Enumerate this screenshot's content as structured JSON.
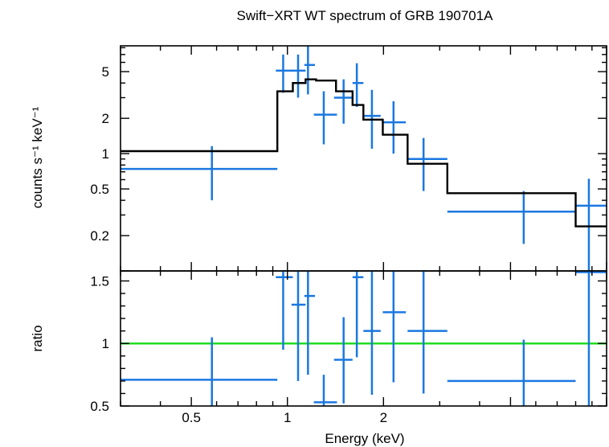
{
  "chart_data": [
    {
      "type": "scatter",
      "panel": "spectrum",
      "title": "Swift−XRT WT spectrum of GRB 190701A",
      "ylabel": "counts s⁻¹ keV⁻¹",
      "yscale": "log",
      "xscale": "log",
      "xlim": [
        0.3,
        10.0
      ],
      "ylim": [
        0.1,
        8.3
      ],
      "yticks": [
        {
          "v": 0.2,
          "label": "0.2"
        },
        {
          "v": 0.5,
          "label": "0.5"
        },
        {
          "v": 1,
          "label": "1"
        },
        {
          "v": 2,
          "label": "2"
        },
        {
          "v": 5,
          "label": "5"
        }
      ],
      "series": [
        {
          "name": "data",
          "color": "#1a78e0",
          "points": [
            {
              "x": 0.58,
              "xlo": 0.3,
              "xhi": 0.93,
              "y": 0.74,
              "ylo": 0.4,
              "yhi": 1.16
            },
            {
              "x": 0.97,
              "xlo": 0.92,
              "xhi": 1.04,
              "y": 5.1,
              "ylo": 3.3,
              "yhi": 7.0
            },
            {
              "x": 1.08,
              "xlo": 1.03,
              "xhi": 1.14,
              "y": 5.1,
              "ylo": 3.0,
              "yhi": 7.0
            },
            {
              "x": 1.16,
              "xlo": 1.13,
              "xhi": 1.22,
              "y": 5.7,
              "ylo": 3.2,
              "yhi": 8.3
            },
            {
              "x": 1.3,
              "xlo": 1.21,
              "xhi": 1.43,
              "y": 2.15,
              "ylo": 1.2,
              "yhi": 3.4
            },
            {
              "x": 1.5,
              "xlo": 1.4,
              "xhi": 1.6,
              "y": 3.0,
              "ylo": 1.8,
              "yhi": 4.3
            },
            {
              "x": 1.65,
              "xlo": 1.6,
              "xhi": 1.73,
              "y": 4.0,
              "ylo": 2.5,
              "yhi": 5.9
            },
            {
              "x": 1.84,
              "xlo": 1.73,
              "xhi": 1.96,
              "y": 2.1,
              "ylo": 1.1,
              "yhi": 3.5
            },
            {
              "x": 2.15,
              "xlo": 1.99,
              "xhi": 2.35,
              "y": 1.85,
              "ylo": 1.0,
              "yhi": 2.8
            },
            {
              "x": 2.67,
              "xlo": 2.38,
              "xhi": 3.17,
              "y": 0.9,
              "ylo": 0.48,
              "yhi": 1.36
            },
            {
              "x": 5.5,
              "xlo": 3.17,
              "xhi": 8.0,
              "y": 0.32,
              "ylo": 0.17,
              "yhi": 0.48
            },
            {
              "x": 8.8,
              "xlo": 8.0,
              "xhi": 10.0,
              "y": 0.36,
              "ylo": 0.1,
              "yhi": 0.61
            }
          ]
        },
        {
          "name": "model",
          "color": "#000000",
          "type": "step",
          "edges": [
            0.3,
            0.93,
            1.04,
            1.14,
            1.23,
            1.42,
            1.6,
            1.73,
            1.99,
            2.38,
            3.17,
            8.0,
            10.0
          ],
          "values": [
            1.05,
            3.4,
            4.0,
            4.3,
            4.2,
            3.4,
            2.6,
            1.95,
            1.45,
            0.82,
            0.46,
            0.24
          ]
        }
      ]
    },
    {
      "type": "scatter",
      "panel": "ratio",
      "xlabel": "Energy (keV)",
      "ylabel": "ratio",
      "xscale": "log",
      "xlim": [
        0.3,
        10.0
      ],
      "ylim": [
        0.5,
        1.58
      ],
      "xticks": [
        {
          "v": 0.5,
          "label": "0.5"
        },
        {
          "v": 1,
          "label": "1"
        },
        {
          "v": 2,
          "label": "2"
        }
      ],
      "yticks": [
        {
          "v": 0.5,
          "label": "0.5"
        },
        {
          "v": 1,
          "label": "1"
        },
        {
          "v": 1.5,
          "label": "1.5"
        }
      ],
      "reference_line": {
        "y": 1.0,
        "color": "#22dd22"
      },
      "series": [
        {
          "name": "ratio",
          "color": "#1a78e0",
          "points": [
            {
              "x": 0.58,
              "xlo": 0.3,
              "xhi": 0.93,
              "y": 0.71,
              "ylo": 0.5,
              "yhi": 1.05
            },
            {
              "x": 0.97,
              "xlo": 0.92,
              "xhi": 1.04,
              "y": 1.53,
              "ylo": 0.95,
              "yhi": 1.58
            },
            {
              "x": 1.08,
              "xlo": 1.03,
              "xhi": 1.14,
              "y": 1.31,
              "ylo": 0.7,
              "yhi": 1.58
            },
            {
              "x": 1.16,
              "xlo": 1.13,
              "xhi": 1.22,
              "y": 1.38,
              "ylo": 0.75,
              "yhi": 1.58
            },
            {
              "x": 1.3,
              "xlo": 1.21,
              "xhi": 1.43,
              "y": 0.53,
              "ylo": 0.5,
              "yhi": 0.75
            },
            {
              "x": 1.5,
              "xlo": 1.4,
              "xhi": 1.6,
              "y": 0.87,
              "ylo": 0.52,
              "yhi": 1.21
            },
            {
              "x": 1.65,
              "xlo": 1.6,
              "xhi": 1.73,
              "y": 1.53,
              "ylo": 0.89,
              "yhi": 1.58
            },
            {
              "x": 1.84,
              "xlo": 1.73,
              "xhi": 1.96,
              "y": 1.1,
              "ylo": 0.59,
              "yhi": 1.58
            },
            {
              "x": 2.15,
              "xlo": 1.99,
              "xhi": 2.35,
              "y": 1.25,
              "ylo": 0.69,
              "yhi": 1.58
            },
            {
              "x": 2.67,
              "xlo": 2.38,
              "xhi": 3.17,
              "y": 1.1,
              "ylo": 0.6,
              "yhi": 1.58
            },
            {
              "x": 5.5,
              "xlo": 3.17,
              "xhi": 8.0,
              "y": 0.7,
              "ylo": 0.5,
              "yhi": 1.03
            },
            {
              "x": 8.8,
              "xlo": 8.0,
              "xhi": 10.0,
              "y": 1.57,
              "ylo": 0.5,
              "yhi": 1.58
            }
          ]
        }
      ]
    }
  ]
}
